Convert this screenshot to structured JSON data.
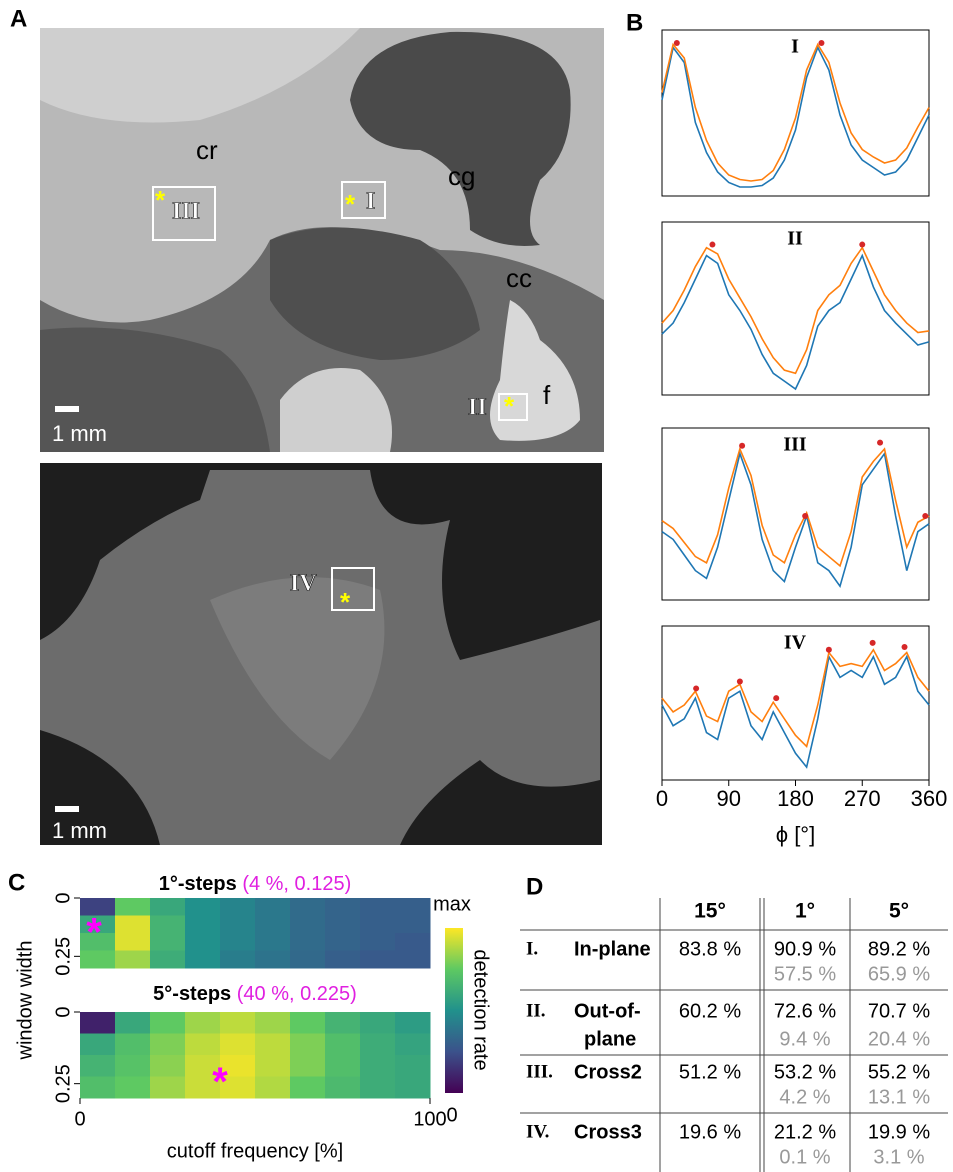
{
  "panel_labels": [
    "A",
    "B",
    "C",
    "D"
  ],
  "panel_a": {
    "region_labels": [
      "cr",
      "cg",
      "cc",
      "f"
    ],
    "roi_labels": [
      "I",
      "II",
      "III",
      "IV"
    ],
    "roi_marker": "*",
    "scale_bar": "1 mm"
  },
  "chart_data": [
    {
      "type": "line",
      "title": "I",
      "x": [
        0,
        15,
        30,
        45,
        60,
        75,
        90,
        105,
        120,
        135,
        150,
        165,
        180,
        195,
        210,
        225,
        240,
        255,
        270,
        285,
        300,
        315,
        330,
        345,
        360
      ],
      "xlim": [
        0,
        360
      ],
      "ylim": [
        0,
        1
      ],
      "series": [
        {
          "color": "#1f77b4",
          "values": [
            0.6,
            0.95,
            0.85,
            0.45,
            0.25,
            0.12,
            0.05,
            0.02,
            0.02,
            0.03,
            0.08,
            0.2,
            0.4,
            0.75,
            0.95,
            0.8,
            0.5,
            0.3,
            0.2,
            0.15,
            0.1,
            0.12,
            0.2,
            0.35,
            0.5
          ]
        },
        {
          "color": "#ff7f0e",
          "values": [
            0.65,
            0.97,
            0.88,
            0.55,
            0.33,
            0.18,
            0.1,
            0.07,
            0.06,
            0.07,
            0.13,
            0.27,
            0.48,
            0.8,
            0.97,
            0.85,
            0.58,
            0.38,
            0.27,
            0.22,
            0.18,
            0.2,
            0.28,
            0.42,
            0.55
          ]
        }
      ],
      "peaks": {
        "color": "#d62728",
        "x": [
          20,
          215
        ],
        "values": [
          0.98,
          0.98
        ]
      }
    },
    {
      "type": "line",
      "title": "II",
      "x": [
        0,
        15,
        30,
        45,
        60,
        75,
        90,
        105,
        120,
        135,
        150,
        165,
        180,
        195,
        210,
        225,
        240,
        255,
        270,
        285,
        300,
        315,
        330,
        345,
        360
      ],
      "xlim": [
        0,
        360
      ],
      "ylim": [
        0,
        1
      ],
      "series": [
        {
          "color": "#1f77b4",
          "values": [
            0.35,
            0.42,
            0.55,
            0.7,
            0.85,
            0.8,
            0.6,
            0.5,
            0.38,
            0.22,
            0.1,
            0.05,
            0.0,
            0.15,
            0.4,
            0.5,
            0.55,
            0.7,
            0.85,
            0.65,
            0.5,
            0.42,
            0.35,
            0.28,
            0.3
          ]
        },
        {
          "color": "#ff7f0e",
          "values": [
            0.42,
            0.5,
            0.63,
            0.78,
            0.9,
            0.86,
            0.7,
            0.58,
            0.46,
            0.32,
            0.2,
            0.12,
            0.1,
            0.25,
            0.5,
            0.6,
            0.66,
            0.8,
            0.9,
            0.75,
            0.6,
            0.5,
            0.42,
            0.36,
            0.37
          ]
        }
      ],
      "peaks": {
        "color": "#d62728",
        "x": [
          68,
          270
        ],
        "values": [
          0.92,
          0.92
        ]
      }
    },
    {
      "type": "line",
      "title": "III",
      "x": [
        0,
        15,
        30,
        45,
        60,
        75,
        90,
        105,
        120,
        135,
        150,
        165,
        180,
        195,
        210,
        225,
        240,
        255,
        270,
        285,
        300,
        315,
        330,
        345,
        360
      ],
      "xlim": [
        0,
        360
      ],
      "ylim": [
        0,
        1
      ],
      "series": [
        {
          "color": "#1f77b4",
          "values": [
            0.4,
            0.35,
            0.25,
            0.15,
            0.1,
            0.3,
            0.6,
            0.9,
            0.7,
            0.35,
            0.15,
            0.08,
            0.3,
            0.5,
            0.2,
            0.15,
            0.05,
            0.3,
            0.7,
            0.8,
            0.9,
            0.5,
            0.15,
            0.4,
            0.45
          ]
        },
        {
          "color": "#ff7f0e",
          "values": [
            0.47,
            0.42,
            0.33,
            0.24,
            0.2,
            0.38,
            0.68,
            0.93,
            0.76,
            0.44,
            0.25,
            0.2,
            0.38,
            0.52,
            0.3,
            0.24,
            0.18,
            0.4,
            0.75,
            0.85,
            0.93,
            0.6,
            0.3,
            0.46,
            0.5
          ]
        }
      ],
      "peaks": {
        "color": "#d62728",
        "x": [
          108,
          193,
          294,
          355
        ],
        "values": [
          0.95,
          0.5,
          0.97,
          0.5
        ]
      }
    },
    {
      "type": "line",
      "title": "IV",
      "x": [
        0,
        15,
        30,
        45,
        60,
        75,
        90,
        105,
        120,
        135,
        150,
        165,
        180,
        195,
        210,
        225,
        240,
        255,
        270,
        285,
        300,
        315,
        330,
        345,
        360
      ],
      "xlim": [
        0,
        360
      ],
      "ylim": [
        0,
        1
      ],
      "xticks": [
        0,
        90,
        180,
        270,
        360
      ],
      "xlabel": "ϕ [°]",
      "series": [
        {
          "color": "#1f77b4",
          "values": [
            0.5,
            0.35,
            0.4,
            0.55,
            0.3,
            0.25,
            0.55,
            0.6,
            0.35,
            0.25,
            0.45,
            0.3,
            0.15,
            0.05,
            0.4,
            0.85,
            0.7,
            0.75,
            0.7,
            0.85,
            0.65,
            0.7,
            0.85,
            0.6,
            0.5
          ]
        },
        {
          "color": "#ff7f0e",
          "values": [
            0.55,
            0.45,
            0.5,
            0.6,
            0.42,
            0.38,
            0.6,
            0.65,
            0.45,
            0.38,
            0.52,
            0.4,
            0.28,
            0.2,
            0.5,
            0.88,
            0.78,
            0.8,
            0.78,
            0.9,
            0.75,
            0.8,
            0.88,
            0.7,
            0.6
          ]
        }
      ],
      "peaks": {
        "color": "#d62728",
        "x": [
          46,
          105,
          154,
          225,
          284,
          327
        ],
        "values": [
          0.62,
          0.67,
          0.55,
          0.9,
          0.95,
          0.92
        ]
      }
    },
    {
      "type": "heatmap",
      "title": "1°-steps",
      "subtitle": "(4 %, 0.125)",
      "ylabel": "window width",
      "xlim": [
        0,
        100
      ],
      "ylim": [
        0,
        0.3
      ],
      "yticks": [
        0,
        0.25
      ],
      "xbins": [
        0,
        10,
        20,
        30,
        40,
        50,
        60,
        70,
        80,
        90,
        100
      ],
      "ybins": [
        0,
        0.075,
        0.15,
        0.225,
        0.3
      ],
      "z": [
        [
          0.2,
          0.75,
          0.6,
          0.5,
          0.45,
          0.4,
          0.35,
          0.32,
          0.3,
          0.3
        ],
        [
          0.6,
          0.95,
          0.65,
          0.5,
          0.45,
          0.4,
          0.35,
          0.32,
          0.3,
          0.3
        ],
        [
          0.7,
          0.95,
          0.65,
          0.5,
          0.45,
          0.4,
          0.35,
          0.32,
          0.3,
          0.28
        ],
        [
          0.75,
          0.85,
          0.62,
          0.5,
          0.42,
          0.38,
          0.34,
          0.3,
          0.28,
          0.28
        ]
      ],
      "optimum": {
        "x": 4,
        "y": 0.125,
        "marker": "*",
        "color": "#ff00ff"
      }
    },
    {
      "type": "heatmap",
      "title": "5°-steps",
      "subtitle": "(40 %, 0.225)",
      "xlabel": "cutoff frequency [%]",
      "xlim": [
        0,
        100
      ],
      "ylim": [
        0,
        0.3
      ],
      "xticks": [
        0,
        100
      ],
      "yticks": [
        0,
        0.25
      ],
      "xbins": [
        0,
        10,
        20,
        30,
        40,
        50,
        60,
        70,
        80,
        90,
        100
      ],
      "ybins": [
        0,
        0.075,
        0.15,
        0.225,
        0.3
      ],
      "z": [
        [
          0.1,
          0.6,
          0.75,
          0.85,
          0.9,
          0.85,
          0.75,
          0.65,
          0.6,
          0.55
        ],
        [
          0.6,
          0.7,
          0.8,
          0.9,
          0.95,
          0.9,
          0.8,
          0.7,
          0.62,
          0.58
        ],
        [
          0.65,
          0.72,
          0.82,
          0.92,
          0.97,
          0.9,
          0.8,
          0.7,
          0.62,
          0.6
        ],
        [
          0.7,
          0.75,
          0.85,
          0.92,
          0.95,
          0.88,
          0.75,
          0.68,
          0.62,
          0.6
        ]
      ],
      "optimum": {
        "x": 40,
        "y": 0.225,
        "marker": "*",
        "color": "#ff00ff"
      },
      "colorbar": {
        "label": "detection rate",
        "max_label": "max",
        "min_label": "0"
      }
    }
  ],
  "table": {
    "columns": [
      "15°",
      "1°",
      "5°"
    ],
    "rows": [
      {
        "num": "I.",
        "name": [
          "In-plane"
        ],
        "values": [
          "83.8 %",
          "90.9 %",
          "89.2 %"
        ],
        "sub": [
          "57.5 %",
          "65.9 %"
        ]
      },
      {
        "num": "II.",
        "name": [
          "Out-of-",
          "plane"
        ],
        "values": [
          "60.2 %",
          "72.6 %",
          "70.7 %"
        ],
        "sub": [
          "9.4 %",
          "20.4 %"
        ]
      },
      {
        "num": "III.",
        "name": [
          "Cross2"
        ],
        "values": [
          "51.2 %",
          "53.2 %",
          "55.2 %"
        ],
        "sub": [
          "4.2 %",
          "13.1 %"
        ]
      },
      {
        "num": "IV.",
        "name": [
          "Cross3"
        ],
        "values": [
          "19.6 %",
          "21.2 %",
          "19.9 %"
        ],
        "sub": [
          "0.1 %",
          "3.1 %"
        ]
      }
    ]
  }
}
